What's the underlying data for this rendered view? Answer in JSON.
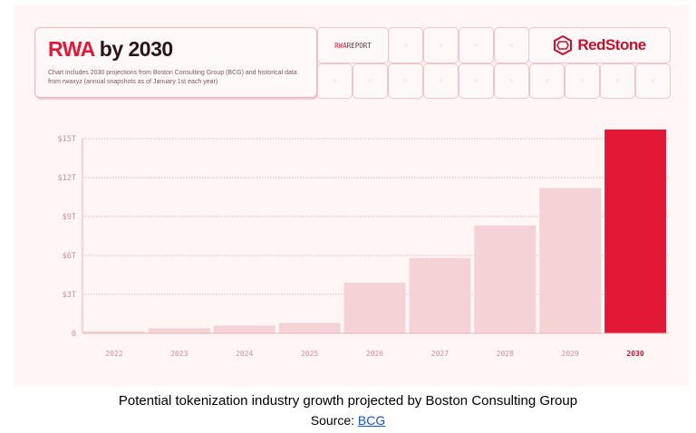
{
  "header": {
    "title_highlight": "RWA",
    "title_rest": " by 2030",
    "description": "Chart includes 2030 projections from Boston Consulting Group (BCG) and historical data from rwaxyz (annual snapshots as of January 1st each year)",
    "report_tag_highlight": "RWA",
    "report_tag_rest": " REPORT",
    "logo_text": "RedStone",
    "cell_glyph": "○"
  },
  "colors": {
    "accent": "#e31837",
    "bar": "#f5d2d6",
    "axis": "#d98a96",
    "background": "#fff6f5"
  },
  "chart_data": {
    "type": "bar",
    "title": "",
    "xlabel": "",
    "ylabel": "",
    "categories": [
      "2022",
      "2023",
      "2024",
      "2025",
      "2026",
      "2027",
      "2028",
      "2029",
      "2030"
    ],
    "values": [
      0.16,
      0.4,
      0.6,
      0.8,
      3.9,
      5.8,
      8.3,
      11.2,
      15.7
    ],
    "highlight_category": "2030",
    "ylim": [
      0,
      15.7
    ],
    "yticks": [
      0,
      3,
      6,
      9,
      12,
      15
    ],
    "ytick_labels": [
      "0",
      "$3T",
      "$6T",
      "$9T",
      "$12T",
      "$15T"
    ],
    "grid": true
  },
  "caption": {
    "text": "Potential tokenization industry growth projected by Boston Consulting Group",
    "source_label": "Source: ",
    "source_link": "BCG"
  }
}
